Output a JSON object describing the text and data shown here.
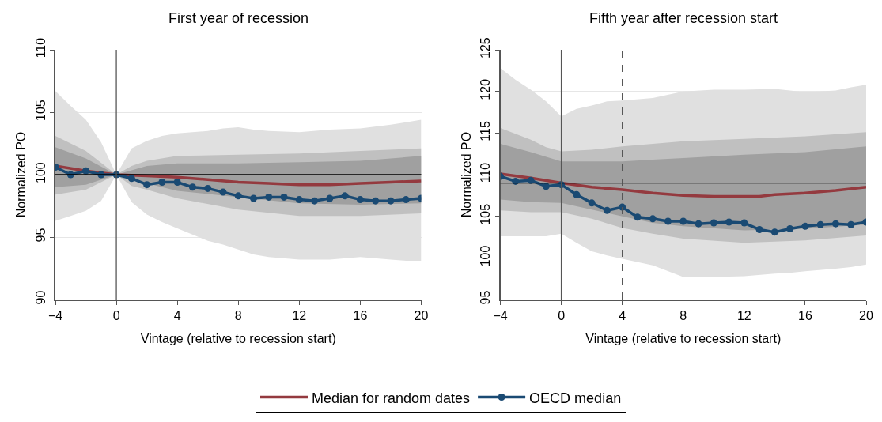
{
  "chart_data": [
    {
      "type": "line",
      "title": "First year of recession",
      "xlabel": "Vintage (relative to recession start)",
      "ylabel": "Normalized PO",
      "xlim": [
        -4,
        20
      ],
      "ylim": [
        90,
        110
      ],
      "xticks": [
        {
          "value": -4,
          "label": "−4"
        },
        0,
        4,
        8,
        12,
        16,
        20
      ],
      "yticks": [
        90,
        95,
        100,
        105,
        110
      ],
      "grid": "y",
      "legend": "bottom",
      "series": [
        {
          "type": "area",
          "color": "#e0e0e0",
          "x": [
            -4,
            -3,
            -2,
            -1,
            0,
            1,
            2,
            3,
            4,
            6,
            7,
            8,
            9,
            10,
            12,
            14,
            16,
            18,
            19,
            20
          ],
          "values": [
            null,
            null,
            null,
            null,
            null,
            null,
            null,
            null,
            null,
            null,
            null,
            null,
            null,
            null,
            null,
            null,
            null,
            null,
            null,
            null
          ],
          "lower": [
            96.3,
            96.7,
            97.1,
            97.9,
            100,
            97.8,
            96.8,
            96.2,
            95.7,
            94.7,
            94.4,
            94.0,
            93.6,
            93.4,
            93.2,
            93.2,
            93.4,
            93.2,
            93.1,
            93.1
          ],
          "upper": [
            106.7,
            105.5,
            104.4,
            102.6,
            100,
            102.1,
            102.7,
            103.1,
            103.3,
            103.5,
            103.7,
            103.8,
            103.6,
            103.5,
            103.4,
            103.6,
            103.7,
            104.0,
            104.2,
            104.4
          ]
        },
        {
          "type": "area",
          "color": "#c0c0c0",
          "x": [
            -4,
            -2,
            0,
            1,
            2,
            4,
            8,
            12,
            16,
            20
          ],
          "values": [
            null,
            null,
            null,
            null,
            null,
            null,
            null,
            null,
            null,
            null
          ],
          "lower": [
            98.4,
            98.8,
            100,
            99.1,
            98.8,
            98.1,
            97.2,
            96.7,
            96.7,
            96.9
          ],
          "upper": [
            103.1,
            101.9,
            100,
            100.7,
            101.1,
            101.5,
            101.6,
            101.7,
            101.9,
            102.1
          ]
        },
        {
          "type": "area",
          "color": "#a0a0a0",
          "x": [
            -4,
            -2,
            0,
            2,
            4,
            8,
            12,
            16,
            20
          ],
          "values": [
            null,
            null,
            null,
            null,
            null,
            null,
            null,
            null,
            null
          ],
          "lower": [
            99.0,
            99.2,
            100,
            99.3,
            98.7,
            98.2,
            97.7,
            97.6,
            97.7
          ],
          "upper": [
            102.2,
            101.3,
            100,
            100.7,
            100.9,
            100.9,
            101.0,
            101.1,
            101.5
          ]
        },
        {
          "name": "Median for random dates",
          "color": "#943a3f",
          "marker": "none",
          "x": [
            -4,
            -2,
            0,
            2,
            4,
            6,
            8,
            10,
            12,
            14,
            16,
            18,
            20
          ],
          "values": [
            100.7,
            100.3,
            100,
            99.9,
            99.8,
            99.6,
            99.4,
            99.3,
            99.2,
            99.2,
            99.3,
            99.4,
            99.5
          ]
        },
        {
          "name": "OECD median",
          "color": "#1a4a73",
          "marker": "circle",
          "x": [
            -4,
            -3,
            -2,
            -1,
            0,
            1,
            2,
            3,
            4,
            5,
            6,
            7,
            8,
            9,
            10,
            11,
            12,
            13,
            14,
            15,
            16,
            17,
            18,
            19,
            20
          ],
          "values": [
            100.6,
            100,
            100.3,
            100,
            100,
            99.7,
            99.2,
            99.4,
            99.4,
            99.0,
            98.9,
            98.6,
            98.3,
            98.1,
            98.2,
            98.2,
            98.0,
            97.9,
            98.1,
            98.3,
            98.0,
            97.9,
            97.9,
            98.0,
            98.1
          ]
        }
      ],
      "ref_lines": [
        {
          "axis": "y",
          "value": 100,
          "color": "#000000",
          "line_style": "solid"
        },
        {
          "axis": "x",
          "value": 0,
          "color": "#555555",
          "line_style": "solid"
        }
      ]
    },
    {
      "type": "line",
      "title": "Fifth year after recession start",
      "xlabel": "Vintage (relative to recession start)",
      "ylabel": "Normalized PO",
      "xlim": [
        -4,
        20
      ],
      "ylim": [
        95,
        125
      ],
      "xticks": [
        {
          "value": -4,
          "label": "−4"
        },
        0,
        4,
        8,
        12,
        16,
        20
      ],
      "yticks": [
        95,
        100,
        105,
        110,
        115,
        120,
        125
      ],
      "grid": "y",
      "legend": "bottom",
      "series": [
        {
          "type": "area",
          "color": "#e0e0e0",
          "x": [
            -4,
            -3,
            -2,
            -1,
            0,
            1,
            2,
            3,
            4,
            6,
            8,
            10,
            12,
            14,
            15,
            16,
            18,
            19,
            20
          ],
          "values": [
            null,
            null,
            null,
            null,
            null,
            null,
            null,
            null,
            null,
            null,
            null,
            null,
            null,
            null,
            null,
            null,
            null,
            null,
            null
          ],
          "lower": [
            102.6,
            102.6,
            102.6,
            102.6,
            102.9,
            101.8,
            100.8,
            100.3,
            99.9,
            99.1,
            97.7,
            97.7,
            97.8,
            98.1,
            98.2,
            98.4,
            98.7,
            98.9,
            99.2
          ],
          "upper": [
            122.8,
            121.4,
            120.2,
            118.8,
            117.0,
            117.9,
            118.3,
            118.8,
            118.9,
            119.2,
            120.0,
            120.2,
            120.2,
            120.3,
            120.1,
            119.9,
            120.1,
            120.5,
            120.8
          ]
        },
        {
          "type": "area",
          "color": "#c0c0c0",
          "x": [
            -4,
            -2,
            -1,
            0,
            2,
            4,
            6,
            8,
            12,
            16,
            20
          ],
          "values": [
            null,
            null,
            null,
            null,
            null,
            null,
            null,
            null,
            null,
            null,
            null
          ],
          "lower": [
            105.7,
            105.5,
            105.5,
            105.5,
            104.7,
            103.6,
            102.9,
            102.3,
            101.8,
            102.1,
            102.7
          ],
          "upper": [
            115.6,
            114.2,
            113.3,
            112.8,
            113.0,
            113.4,
            113.7,
            114.0,
            114.3,
            114.6,
            115.1
          ]
        },
        {
          "type": "area",
          "color": "#a0a0a0",
          "x": [
            -4,
            -2,
            0,
            2,
            4,
            6,
            8,
            12,
            16,
            20
          ],
          "values": [
            null,
            null,
            null,
            null,
            null,
            null,
            null,
            null,
            null,
            null
          ],
          "lower": [
            107.0,
            106.7,
            106.6,
            105.8,
            105.0,
            104.2,
            103.8,
            103.3,
            103.5,
            104.0
          ],
          "upper": [
            113.7,
            112.7,
            111.6,
            111.6,
            111.6,
            111.8,
            112.0,
            112.4,
            112.7,
            113.4
          ]
        },
        {
          "name": "Median for random dates",
          "color": "#943a3f",
          "marker": "none",
          "x": [
            -4,
            -2,
            0,
            2,
            4,
            6,
            8,
            10,
            12,
            13,
            14,
            16,
            18,
            20
          ],
          "values": [
            110.1,
            109.6,
            109.0,
            108.5,
            108.2,
            107.8,
            107.5,
            107.4,
            107.4,
            107.4,
            107.6,
            107.8,
            108.1,
            108.5
          ]
        },
        {
          "name": "OECD median",
          "color": "#1a4a73",
          "marker": "circle",
          "x": [
            -4,
            -3,
            -2,
            -1,
            0,
            1,
            2,
            3,
            4,
            5,
            6,
            7,
            8,
            9,
            10,
            11,
            12,
            13,
            14,
            15,
            16,
            17,
            18,
            19,
            20
          ],
          "values": [
            109.8,
            109.2,
            109.3,
            108.6,
            108.8,
            107.6,
            106.6,
            105.7,
            106.1,
            104.9,
            104.7,
            104.4,
            104.4,
            104.1,
            104.2,
            104.3,
            104.2,
            103.4,
            103.1,
            103.5,
            103.8,
            104.0,
            104.1,
            104.0,
            104.3
          ]
        }
      ],
      "ref_lines": [
        {
          "axis": "y",
          "value": 109,
          "color": "#000000",
          "line_style": "solid"
        },
        {
          "axis": "x",
          "value": 0,
          "color": "#555555",
          "line_style": "solid"
        },
        {
          "axis": "x",
          "value": 4,
          "color": "#555555",
          "line_style": "dashed"
        }
      ]
    }
  ]
}
